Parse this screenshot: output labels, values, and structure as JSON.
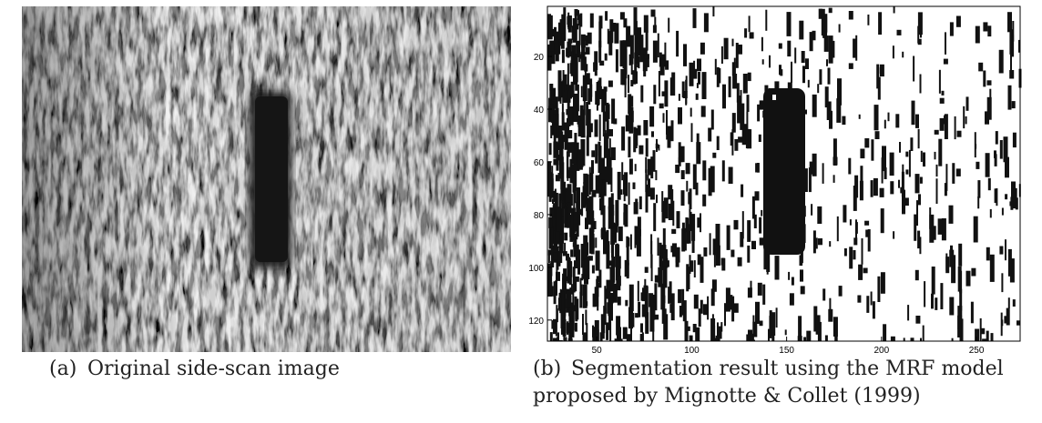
{
  "panels": [
    {
      "label": "(a)",
      "text": "Original side-scan image"
    },
    {
      "label": "(b)",
      "text": "Segmentation result using the MRF model",
      "text_line2": "proposed by Mignotte & Collet (1999)",
      "xlim": [
        24,
        273
      ],
      "xticks": [
        50,
        100,
        150,
        200,
        250
      ],
      "ylim": [
        1,
        128
      ],
      "yticks": [
        20,
        40,
        60,
        80,
        100,
        120
      ]
    }
  ]
}
